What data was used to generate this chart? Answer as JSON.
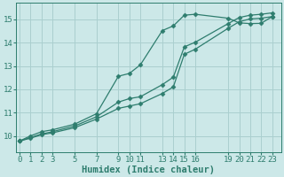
{
  "bg_color": "#cce8e8",
  "grid_color": "#aacfcf",
  "line_color": "#2e7d6e",
  "xlabel": "Humidex (Indice chaleur)",
  "xticks": [
    0,
    1,
    2,
    3,
    5,
    7,
    9,
    10,
    11,
    13,
    14,
    15,
    16,
    19,
    20,
    21,
    22,
    23
  ],
  "yticks": [
    10,
    11,
    12,
    13,
    14,
    15
  ],
  "ylim": [
    9.3,
    15.7
  ],
  "xlim": [
    -0.3,
    23.8
  ],
  "line1_x": [
    0,
    1,
    2,
    3,
    5,
    7,
    9,
    10,
    11,
    13,
    14,
    15,
    16,
    19,
    20,
    21,
    22,
    23
  ],
  "line1_y": [
    9.78,
    10.0,
    10.18,
    10.26,
    10.5,
    10.95,
    12.56,
    12.68,
    13.05,
    14.52,
    14.72,
    15.18,
    15.22,
    15.05,
    14.85,
    14.82,
    14.83,
    15.12
  ],
  "line2_x": [
    0,
    1,
    2,
    3,
    5,
    7,
    9,
    10,
    11,
    13,
    14,
    15,
    16,
    19,
    20,
    21,
    22,
    23
  ],
  "line2_y": [
    9.78,
    9.93,
    10.08,
    10.18,
    10.42,
    10.82,
    11.45,
    11.6,
    11.68,
    12.2,
    12.52,
    13.82,
    14.02,
    14.82,
    15.08,
    15.18,
    15.22,
    15.28
  ],
  "line3_x": [
    0,
    1,
    2,
    3,
    5,
    7,
    9,
    10,
    11,
    13,
    14,
    15,
    16,
    19,
    20,
    21,
    22,
    23
  ],
  "line3_y": [
    9.78,
    9.9,
    10.05,
    10.13,
    10.35,
    10.72,
    11.18,
    11.28,
    11.38,
    11.82,
    12.1,
    13.5,
    13.72,
    14.62,
    14.9,
    15.02,
    15.05,
    15.12
  ],
  "marker": "D",
  "markersize": 2.5,
  "linewidth": 0.9,
  "tick_fontsize": 6.5,
  "xlabel_fontsize": 7.5,
  "font_family": "monospace"
}
